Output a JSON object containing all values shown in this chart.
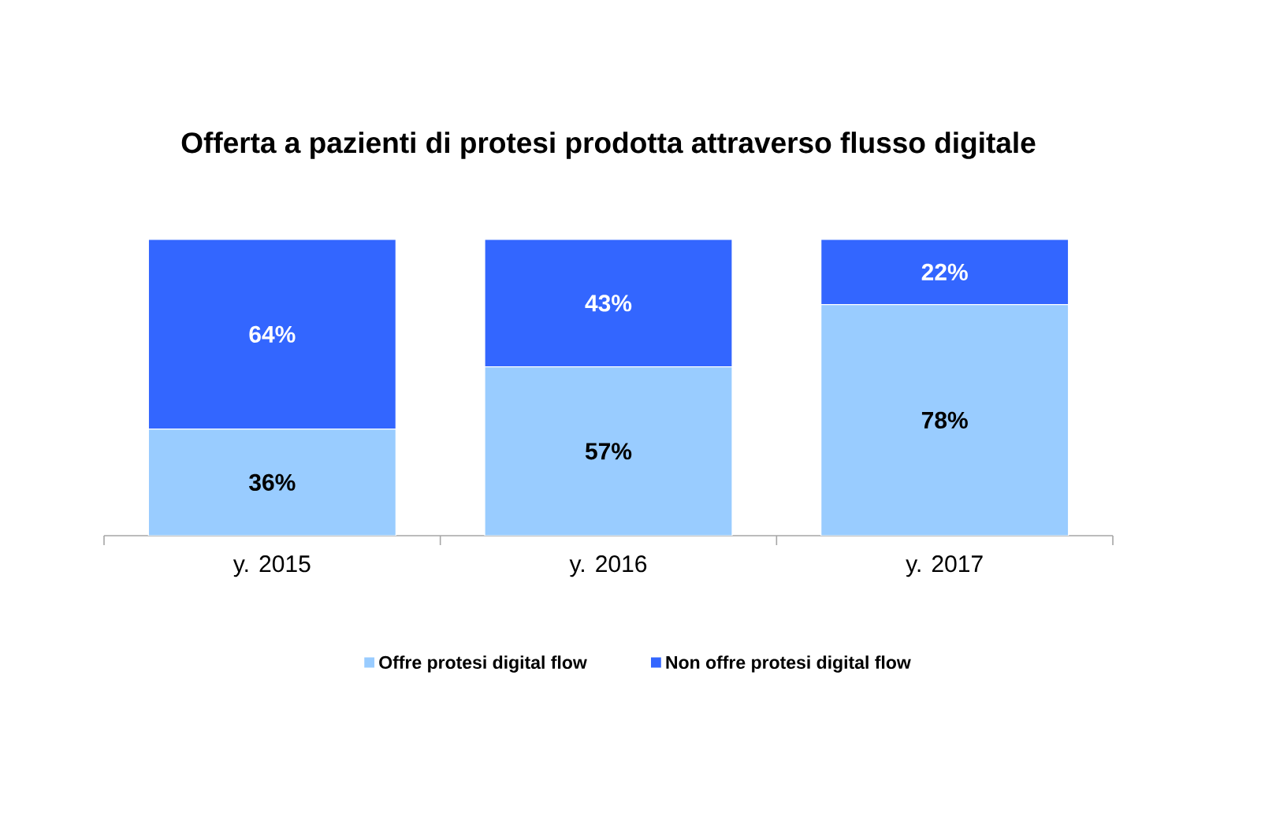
{
  "chart_data": {
    "type": "bar",
    "stacked": true,
    "title": "Offerta a pazienti di protesi prodotta attraverso flusso digitale",
    "categories": [
      "y. 2015",
      "y. 2016",
      "y. 2017"
    ],
    "series": [
      {
        "name": "Offre protesi digital flow",
        "color": "#99ccff",
        "values": [
          36,
          57,
          78
        ],
        "value_labels": [
          "36%",
          "57%",
          "78%"
        ]
      },
      {
        "name": "Non offre protesi digital flow",
        "color": "#3366ff",
        "values": [
          64,
          43,
          22
        ],
        "value_labels": [
          "64%",
          "43%",
          "22%"
        ]
      }
    ],
    "ylim": [
      0,
      100
    ],
    "tick_labels": "x",
    "legend": "bottom"
  }
}
